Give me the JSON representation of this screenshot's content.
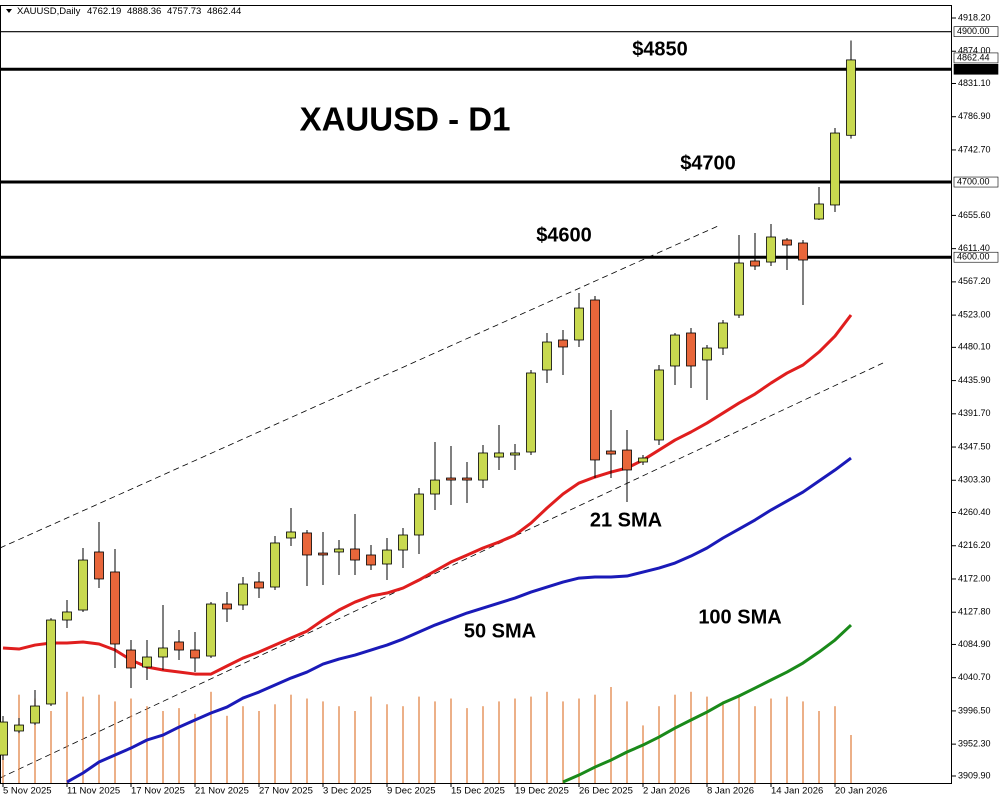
{
  "chart_data": {
    "type": "candlestick",
    "title": "XAUUSD - D1",
    "symbol": "XAUUSD,Daily",
    "categories": [
      "5 Nov 2025",
      null,
      null,
      null,
      "11 Nov 2025",
      null,
      null,
      null,
      "17 Nov 2025",
      null,
      null,
      null,
      "21 Nov 2025",
      null,
      null,
      null,
      "27 Nov 2025",
      null,
      null,
      null,
      "3 Dec 2025",
      null,
      null,
      null,
      "9 Dec 2025",
      null,
      null,
      null,
      "15 Dec 2025",
      null,
      null,
      null,
      "19 Dec 2025",
      null,
      null,
      null,
      "26 Dec 2025",
      null,
      null,
      null,
      "2 Jan 2026",
      null,
      null,
      null,
      "8 Jan 2026",
      null,
      null,
      null,
      "14 Jan 2026",
      null,
      null,
      null,
      "20 Jan 2026",
      null
    ],
    "open": [
      3937.8,
      3969.8,
      3980.4,
      4005.7,
      4117.4,
      4130.7,
      4207.9,
      4181.3,
      4077.5,
      4054.9,
      4068.2,
      4088.2,
      4077.5,
      4069.5,
      4138.7,
      4137.4,
      4168.0,
      4161.3,
      4226.5,
      4233.2,
      4206.5,
      4207.9,
      4211.9,
      4203.9,
      4191.9,
      4210.5,
      4230.5,
      4285.0,
      4306.3,
      4306.3,
      4303.6,
      4334.2,
      4336.9,
      4340.9,
      4450.0,
      4489.9,
      4489.9,
      4543.1,
      4342.2,
      4343.5,
      4327.6,
      4356.9,
      4455.3,
      4499.2,
      4463.3,
      4479.2,
      4523.1,
      4595.0,
      4593.6,
      4622.9,
      4618.9,
      4650.8,
      4669.5,
      4762.19
    ],
    "high": [
      3989.7,
      3987.0,
      4024.3,
      4120.0,
      4144.0,
      4213.2,
      4247.8,
      4211.9,
      4090.8,
      4090.8,
      4137.4,
      4104.1,
      4101.5,
      4141.4,
      4154.7,
      4174.6,
      4181.3,
      4229.2,
      4266.4,
      4237.1,
      4234.5,
      4223.9,
      4258.4,
      4217.2,
      4226.5,
      4239.8,
      4293.0,
      4354.2,
      4348.9,
      4327.6,
      4350.2,
      4376.8,
      4351.5,
      4450.0,
      4499.2,
      4503.2,
      4552.4,
      4548.4,
      4396.8,
      4370.2,
      4336.9,
      4456.6,
      4499.2,
      4505.8,
      4483.2,
      4516.5,
      4629.5,
      4632.2,
      4644.2,
      4625.6,
      4622.9,
      4693.4,
      4771.9,
      4888.36
    ],
    "low": [
      3931.2,
      3967.0,
      3977.7,
      4003.0,
      4106.8,
      4128.1,
      4160.0,
      4053.6,
      4027.0,
      4037.6,
      4050.9,
      4064.2,
      4048.2,
      4066.9,
      4114.8,
      4130.7,
      4146.7,
      4157.3,
      4215.9,
      4162.6,
      4164.0,
      4177.3,
      4177.3,
      4183.9,
      4170.6,
      4186.6,
      4205.2,
      4263.7,
      4270.4,
      4273.0,
      4293.0,
      4317.0,
      4317.0,
      4336.9,
      4432.7,
      4443.3,
      4480.6,
      4306.3,
      4306.3,
      4274.4,
      4323.6,
      4350.2,
      4430.0,
      4426.0,
      4410.1,
      4469.9,
      4519.1,
      4583.0,
      4588.3,
      4583.0,
      4536.4,
      4649.5,
      4660.1,
      4757.73
    ],
    "close": [
      3981.7,
      3977.7,
      4003.0,
      4117.4,
      4128.1,
      4197.2,
      4172.0,
      4085.5,
      4053.6,
      4068.2,
      4080.2,
      4077.5,
      4066.9,
      4138.7,
      4132.1,
      4165.3,
      4160.0,
      4219.9,
      4234.5,
      4203.9,
      4203.9,
      4211.9,
      4197.2,
      4190.6,
      4210.5,
      4230.5,
      4285.0,
      4303.6,
      4303.6,
      4303.6,
      4339.6,
      4339.6,
      4339.6,
      4446.0,
      4487.2,
      4480.6,
      4532.4,
      4330.3,
      4338.2,
      4317.0,
      4332.9,
      4450.0,
      4496.5,
      4455.3,
      4479.2,
      4512.5,
      4592.3,
      4588.3,
      4626.9,
      4616.2,
      4596.3,
      4670.8,
      4765.2,
      4862.44
    ],
    "up_color": "#c8d94f",
    "down_color": "#e8663a",
    "series": [
      {
        "name": "21 SMA",
        "color": "#e01e1e",
        "values": [
          4080.2,
          4078.8,
          4084.1,
          4086.8,
          4086.8,
          4088.1,
          4085.5,
          4077.5,
          4064.2,
          4054.9,
          4050.9,
          4048.2,
          4045.5,
          4045.5,
          4056.2,
          4066.8,
          4074.8,
          4084.1,
          4093.4,
          4102.7,
          4117.4,
          4130.7,
          4141.3,
          4149.3,
          4153.3,
          4159.9,
          4170.6,
          4182.6,
          4194.5,
          4203.8,
          4213.2,
          4221.1,
          4230.4,
          4246.4,
          4266.4,
          4285.0,
          4299.6,
          4307.6,
          4314.2,
          4319.6,
          4330.2,
          4343.5,
          4356.8,
          4367.5,
          4379.4,
          4392.7,
          4406.0,
          4418.0,
          4432.6,
          4445.9,
          4456.6,
          4473.9,
          4495.1,
          4523.1
        ]
      },
      {
        "name": "50 SMA",
        "color": "#1a1ab8",
        "values": [
          null,
          null,
          null,
          null,
          3901.9,
          3913.9,
          3928.5,
          3937.8,
          3947.1,
          3957.8,
          3964.4,
          3975.0,
          3984.4,
          3993.7,
          4001.6,
          4013.6,
          4021.6,
          4030.9,
          4040.2,
          4048.2,
          4058.8,
          4065.5,
          4070.8,
          4077.5,
          4084.1,
          4092.1,
          4101.4,
          4110.7,
          4118.7,
          4126.7,
          4133.3,
          4140.0,
          4146.6,
          4154.6,
          4161.3,
          4167.9,
          4173.2,
          4174.6,
          4174.6,
          4175.9,
          4181.2,
          4186.5,
          4193.2,
          4202.5,
          4213.2,
          4226.5,
          4238.4,
          4250.4,
          4263.7,
          4275.7,
          4287.6,
          4302.3,
          4316.9,
          4332.9
        ]
      },
      {
        "name": "100 SMA",
        "color": "#1a8a1a",
        "values": [
          null,
          null,
          null,
          null,
          null,
          null,
          null,
          null,
          null,
          null,
          null,
          null,
          null,
          null,
          null,
          null,
          null,
          null,
          null,
          null,
          null,
          null,
          null,
          null,
          null,
          null,
          null,
          null,
          null,
          null,
          null,
          null,
          null,
          null,
          null,
          3901.9,
          3911.2,
          3921.8,
          3931.1,
          3941.8,
          3951.1,
          3961.7,
          3973.7,
          3984.4,
          3995.0,
          4007.0,
          4016.3,
          4026.9,
          4037.6,
          4048.2,
          4060.2,
          4074.8,
          4090.8,
          4110.7
        ]
      }
    ],
    "volume": [
      50,
      92,
      88,
      75,
      95,
      90,
      92,
      85,
      88,
      80,
      75,
      78,
      72,
      95,
      70,
      80,
      75,
      82,
      92,
      88,
      85,
      80,
      75,
      90,
      82,
      80,
      90,
      85,
      88,
      78,
      80,
      85,
      88,
      90,
      95,
      85,
      88,
      92,
      100,
      85,
      60,
      80,
      92,
      95,
      90,
      85,
      92,
      80,
      88,
      90,
      85,
      75,
      80,
      50
    ],
    "volume_color": "#e07b39",
    "ylim": [
      3900.6,
      4935.5
    ],
    "yticks": [
      {
        "value": 4918.2,
        "label": "4918.20"
      },
      {
        "value": 4874,
        "label": "4874.00"
      },
      {
        "value": 4831.1,
        "label": "4831.10"
      },
      {
        "value": 4786.9,
        "label": "4786.90"
      },
      {
        "value": 4742.7,
        "label": "4742.70"
      },
      {
        "value": 4655.6,
        "label": "4655.60"
      },
      {
        "value": 4611.4,
        "label": "4611.40"
      },
      {
        "value": 4567.2,
        "label": "4567.20"
      },
      {
        "value": 4523,
        "label": "4523.00"
      },
      {
        "value": 4480.1,
        "label": "4480.10"
      },
      {
        "value": 4435.9,
        "label": "4435.90"
      },
      {
        "value": 4391.7,
        "label": "4391.70"
      },
      {
        "value": 4347.5,
        "label": "4347.50"
      },
      {
        "value": 4303.3,
        "label": "4303.30"
      },
      {
        "value": 4260.4,
        "label": "4260.40"
      },
      {
        "value": 4216.2,
        "label": "4216.20"
      },
      {
        "value": 4172,
        "label": "4172.00"
      },
      {
        "value": 4127.8,
        "label": "4127.80"
      },
      {
        "value": 4084.9,
        "label": "4084.90"
      },
      {
        "value": 4040.7,
        "label": "4040.70"
      },
      {
        "value": 3996.5,
        "label": "3996.50"
      },
      {
        "value": 3952.3,
        "label": "3952.30"
      },
      {
        "value": 3909.9,
        "label": "3909.90"
      }
    ],
    "levels": [
      {
        "value": 4900,
        "label": "4900.00",
        "style": "thin"
      },
      {
        "value": 4850,
        "label": "4850.00",
        "style": "thick"
      },
      {
        "value": 4700,
        "label": "4700.00",
        "style": "thick"
      },
      {
        "value": 4600,
        "label": "4600.00",
        "style": "thick"
      }
    ],
    "annotations": [
      "$4850",
      "$4700",
      "$4600"
    ]
  }
}
